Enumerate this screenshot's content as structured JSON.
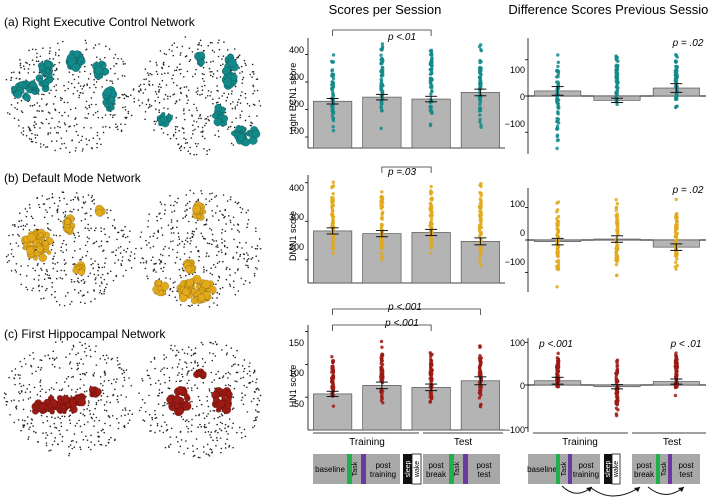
{
  "figure": {
    "col_title_scores": "Scores per Session",
    "col_title_diff": "Difference Scores Previous Session",
    "group_labels": [
      "Training",
      "Test"
    ],
    "session_boxes": {
      "baseline": "baseline",
      "task": "Task",
      "post_training": [
        "post",
        "training"
      ],
      "sleep": "sleep",
      "wake": "wake",
      "post_break": [
        "post",
        "break"
      ],
      "post_test": [
        "post",
        "test"
      ]
    },
    "colors": {
      "ecn": "#138a8a",
      "dmn": "#e2a91a",
      "hn": "#9c1a14",
      "bar": "#b4b4b4",
      "task_green": "#20b04b",
      "task_purple": "#6a3aa0",
      "box_gray": "#a8a8a8"
    }
  },
  "networks": [
    {
      "key": "ecn",
      "panel_label": "(a) Right Executive Control Network",
      "color_name": "teal",
      "scores": {
        "ylabel": "right ECN1 score",
        "ticks": [
          "100",
          "200",
          "300",
          "400"
        ],
        "sig": [
          {
            "label": "p <.01"
          }
        ]
      },
      "diff": {
        "ticks": [
          "100",
          "0",
          "−100"
        ],
        "sig_right": "p = .02"
      }
    },
    {
      "key": "dmn",
      "panel_label": "(b) Default Mode Network",
      "color_name": "gold",
      "scores": {
        "ylabel": "DMN1 score",
        "ticks": [
          "200",
          "300",
          "400"
        ],
        "sig": [
          {
            "label": "p =.03"
          }
        ]
      },
      "diff": {
        "ticks": [
          "100",
          "0",
          "−100"
        ],
        "sig_right": "p = .02"
      }
    },
    {
      "key": "hn",
      "panel_label": "(c) First Hippocampal Network",
      "color_name": "dark red",
      "scores": {
        "ylabel": "HN1 score",
        "ticks": [
          "50",
          "100",
          "150"
        ],
        "sig": [
          {
            "label": "p <.001"
          },
          {
            "label": "p <.001"
          }
        ]
      },
      "diff": {
        "ticks": [
          "100",
          "0",
          "−100"
        ],
        "sig_left": "p <.001",
        "sig_right": "p < .01"
      }
    }
  ],
  "chart_data": [
    {
      "type": "bar",
      "title": "Scores per Session — Right ECN",
      "ylabel": "right ECN1 score",
      "categories": [
        "baseline",
        "post training",
        "post break",
        "post test"
      ],
      "values": [
        230,
        245,
        238,
        262
      ],
      "errors": [
        10,
        10,
        10,
        12
      ],
      "ylim": [
        60,
        460
      ],
      "ticks": [
        100,
        200,
        300,
        400
      ],
      "scatter_range": [
        [
          110,
          400
        ],
        [
          130,
          450
        ],
        [
          120,
          450
        ],
        [
          125,
          440
        ]
      ],
      "sig_brackets": [
        {
          "from": 0,
          "to": 2,
          "label": "p <.01"
        }
      ]
    },
    {
      "type": "bar",
      "title": "Difference Scores Previous Session — Right ECN",
      "categories": [
        "post training",
        "post break",
        "post test"
      ],
      "values": [
        14,
        -12,
        22
      ],
      "errors": [
        12,
        6,
        12
      ],
      "ylim": [
        -160,
        160
      ],
      "ticks": [
        100,
        0,
        -100
      ],
      "scatter_range": [
        [
          -150,
          140
        ],
        [
          -45,
          120
        ],
        [
          -45,
          115
        ]
      ],
      "annotation": "p = .02"
    },
    {
      "type": "bar",
      "title": "Scores per Session — DMN",
      "ylabel": "DMN1 score",
      "categories": [
        "baseline",
        "post training",
        "post break",
        "post test"
      ],
      "values": [
        275,
        268,
        271,
        248
      ],
      "errors": [
        8,
        8,
        8,
        9
      ],
      "ylim": [
        140,
        420
      ],
      "ticks": [
        200,
        300,
        400
      ],
      "scatter_range": [
        [
          180,
          410
        ],
        [
          185,
          410
        ],
        [
          185,
          410
        ],
        [
          175,
          400
        ]
      ],
      "sig_brackets": [
        {
          "from": 1,
          "to": 2,
          "label": "p =.03"
        }
      ]
    },
    {
      "type": "bar",
      "title": "Difference Scores Previous Session — DMN",
      "categories": [
        "post training",
        "post break",
        "post test"
      ],
      "values": [
        -5,
        3,
        -22
      ],
      "errors": [
        10,
        10,
        10
      ],
      "ylim": [
        -160,
        160
      ],
      "ticks": [
        100,
        0,
        -100
      ],
      "scatter_range": [
        [
          -150,
          130
        ],
        [
          -120,
          130
        ],
        [
          -110,
          130
        ]
      ],
      "annotation": "p = .02"
    },
    {
      "type": "bar",
      "title": "Scores per Session — HN",
      "ylabel": "HN1 score",
      "categories": [
        "baseline",
        "post training",
        "post break",
        "post test"
      ],
      "values": [
        55,
        68,
        65,
        75
      ],
      "errors": [
        4,
        5,
        5,
        6
      ],
      "ylim": [
        0,
        160
      ],
      "ticks": [
        50,
        100,
        150
      ],
      "scatter_range": [
        [
          35,
          112
        ],
        [
          38,
          135
        ],
        [
          30,
          120
        ],
        [
          30,
          130
        ]
      ],
      "sig_brackets": [
        {
          "from": 0,
          "to": 2,
          "label": "p <.001"
        },
        {
          "from": 0,
          "to": 3,
          "label": "p <.001"
        }
      ]
    },
    {
      "type": "bar",
      "title": "Difference Scores Previous Session — HN",
      "categories": [
        "post training",
        "post break",
        "post test"
      ],
      "values": [
        10,
        -4,
        8
      ],
      "errors": [
        8,
        5,
        6
      ],
      "ylim": [
        -110,
        110
      ],
      "ticks": [
        100,
        0,
        -100
      ],
      "scatter_range": [
        [
          -25,
          80
        ],
        [
          -75,
          65
        ],
        [
          -30,
          80
        ]
      ],
      "annotations": [
        "p <.001",
        "p < .01"
      ]
    }
  ]
}
